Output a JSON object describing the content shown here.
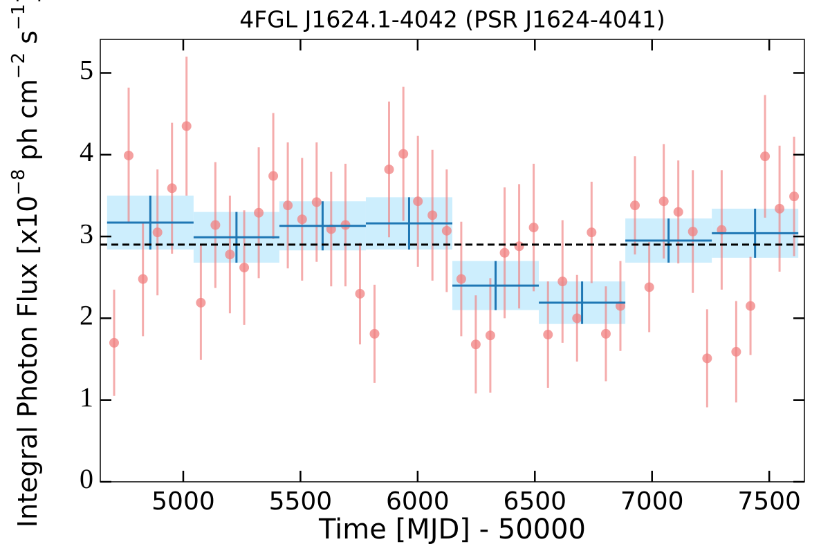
{
  "chart_data": {
    "type": "lightcurve",
    "title": "4FGL J1624.1-4042 (PSR J1624-4041)",
    "xlabel": "Time [MJD] - 50000",
    "ylabel": [
      "Integral Photon Flux [x10",
      "−8",
      " ph cm",
      "−2",
      " s",
      "−1",
      "]"
    ],
    "xlim": [
      4646,
      7650
    ],
    "ylim": [
      0,
      5.41
    ],
    "xticks": [
      5000,
      5500,
      6000,
      6500,
      7000,
      7500
    ],
    "yticks": [
      0,
      1,
      2,
      3,
      4,
      5
    ],
    "points": {
      "color": "#f08080",
      "x": [
        4705,
        4767,
        4828,
        4890,
        4952,
        5014,
        5075,
        5137,
        5199,
        5260,
        5322,
        5384,
        5446,
        5507,
        5569,
        5631,
        5692,
        5754,
        5816,
        5878,
        5939,
        6001,
        6063,
        6124,
        6186,
        6248,
        6310,
        6371,
        6433,
        6495,
        6556,
        6618,
        6680,
        6742,
        6803,
        6865,
        6927,
        6988,
        7050,
        7112,
        7174,
        7235,
        7297,
        7359,
        7420,
        7482,
        7544,
        7606
      ],
      "values": [
        1.7,
        3.99,
        2.48,
        3.05,
        3.59,
        4.35,
        2.19,
        3.14,
        2.78,
        2.62,
        3.29,
        3.74,
        3.38,
        3.21,
        3.42,
        3.09,
        3.14,
        2.3,
        1.81,
        3.82,
        4.01,
        3.43,
        3.26,
        3.07,
        2.48,
        1.68,
        1.79,
        2.8,
        2.88,
        3.11,
        1.8,
        2.45,
        2.0,
        3.05,
        1.81,
        2.15,
        3.38,
        2.38,
        3.43,
        3.3,
        3.06,
        1.51,
        3.08,
        1.59,
        2.15,
        3.98,
        3.34,
        3.49
      ],
      "errors": [
        0.65,
        0.83,
        0.7,
        0.77,
        0.8,
        0.85,
        0.7,
        0.77,
        0.72,
        0.7,
        0.8,
        0.77,
        0.77,
        0.75,
        0.73,
        0.7,
        0.75,
        0.62,
        0.6,
        0.83,
        0.82,
        0.8,
        0.8,
        0.75,
        0.7,
        0.6,
        0.7,
        0.8,
        0.76,
        0.78,
        0.65,
        0.75,
        0.53,
        0.62,
        0.58,
        0.55,
        0.6,
        0.55,
        0.7,
        0.63,
        0.75,
        0.6,
        0.73,
        0.62,
        0.6,
        0.75,
        0.77,
        0.73
      ]
    },
    "bins": {
      "color": "#1f77b4",
      "fill": "#cdeefd",
      "edges": [
        4675,
        5044,
        5410,
        5779,
        6148,
        6517,
        6886,
        7255,
        7624
      ],
      "values": [
        3.17,
        2.99,
        3.13,
        3.16,
        2.4,
        2.19,
        2.95,
        3.04
      ],
      "errors": [
        0.33,
        0.31,
        0.3,
        0.32,
        0.3,
        0.26,
        0.27,
        0.3
      ]
    },
    "mean": 2.9
  }
}
